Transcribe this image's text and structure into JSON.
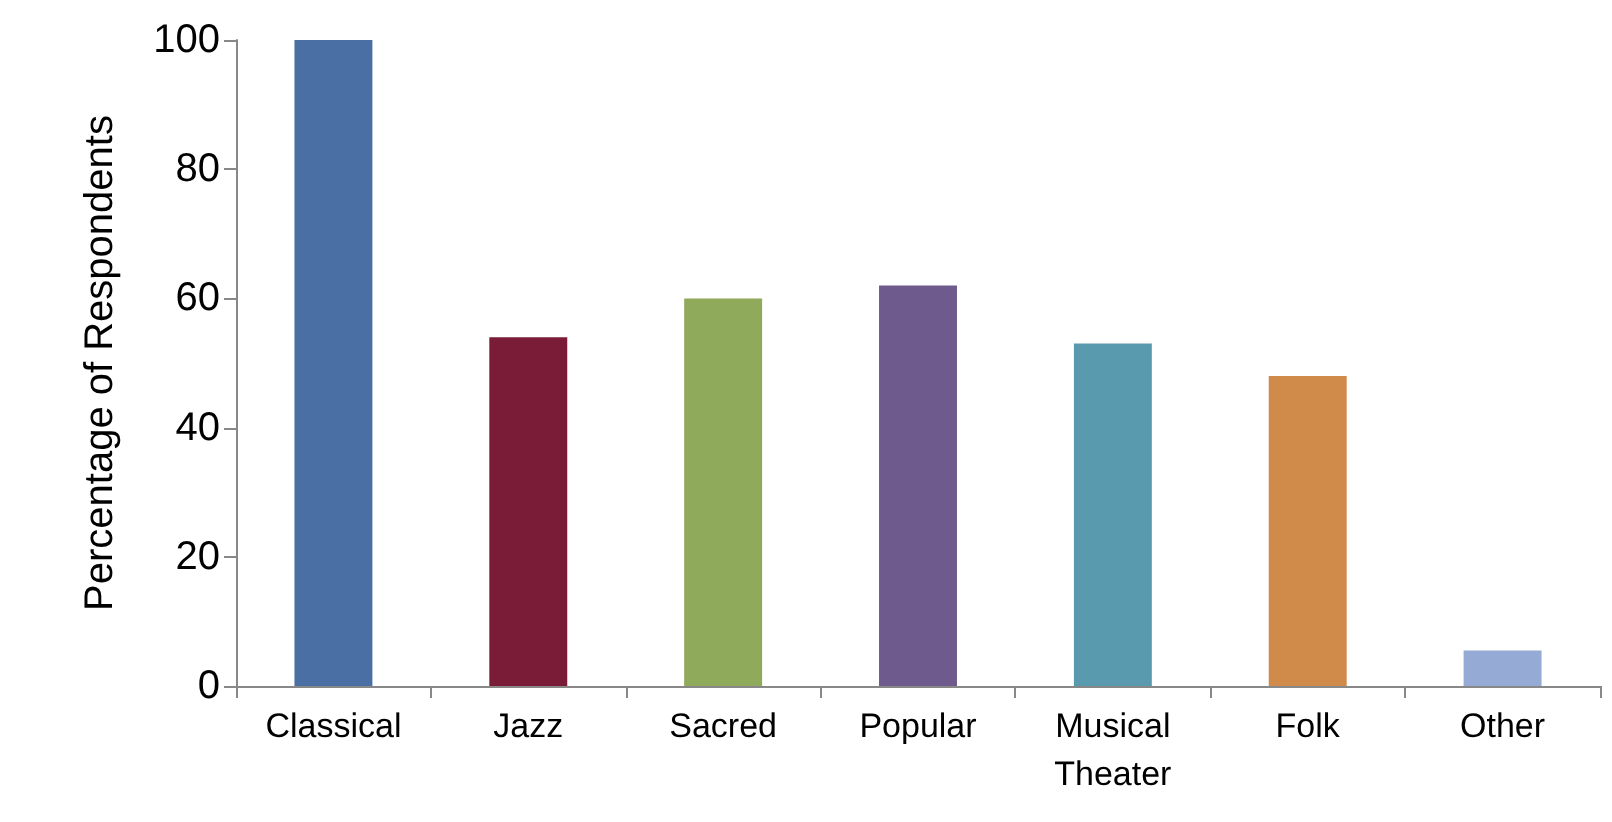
{
  "chart_data": {
    "type": "bar",
    "ylabel": "Percentage of Respondents",
    "categories": [
      "Classical",
      "Jazz",
      "Sacred",
      "Popular",
      "Musical Theater",
      "Folk",
      "Other"
    ],
    "values": [
      100,
      54,
      60,
      62,
      53,
      48,
      5.5
    ],
    "colors": [
      "#4a6fa5",
      "#7a1c38",
      "#8faa5a",
      "#6e5a8c",
      "#5a9aae",
      "#d08a4a",
      "#95aad4"
    ],
    "ylim": [
      0,
      100
    ],
    "yticks": [
      0,
      20,
      40,
      60,
      80,
      100
    ]
  }
}
